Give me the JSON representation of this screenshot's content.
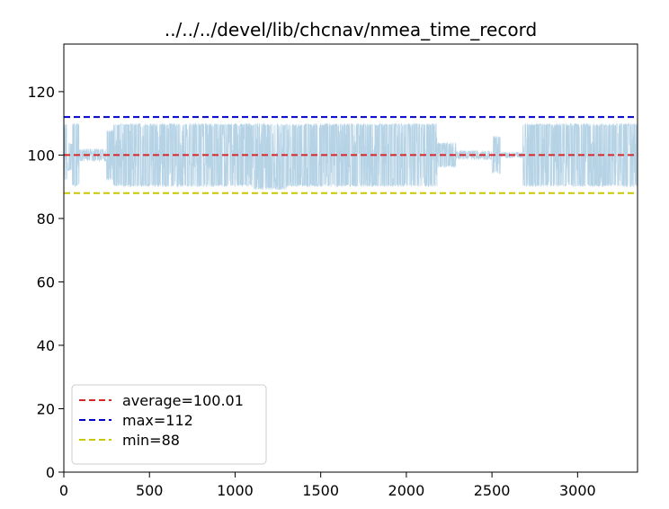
{
  "chart_data": {
    "type": "line",
    "title": "../../../devel/lib/chcnav/nmea_time_record",
    "xlabel": "",
    "ylabel": "",
    "xlim": [
      0,
      3350
    ],
    "ylim": [
      0,
      135
    ],
    "xticks": [
      0,
      500,
      1000,
      1500,
      2000,
      2500,
      3000
    ],
    "yticks": [
      0,
      20,
      40,
      60,
      80,
      100,
      120
    ],
    "grid": false,
    "legend_position": "lower-left",
    "series": [
      {
        "kind": "signal",
        "color": "#a9cbe2",
        "n_points": 3350,
        "center": 100,
        "segments": [
          {
            "x": [
              0,
              20
            ],
            "low": 92,
            "high": 110
          },
          {
            "x": [
              20,
              50
            ],
            "low": 95,
            "high": 104
          },
          {
            "x": [
              50,
              90
            ],
            "low": 90,
            "high": 110
          },
          {
            "x": [
              90,
              250
            ],
            "low": 98,
            "high": 102
          },
          {
            "x": [
              250,
              290
            ],
            "low": 92,
            "high": 108
          },
          {
            "x": [
              290,
              1100
            ],
            "low": 90,
            "high": 110
          },
          {
            "x": [
              1100,
              1300
            ],
            "low": 89,
            "high": 110
          },
          {
            "x": [
              1300,
              2180
            ],
            "low": 90,
            "high": 110
          },
          {
            "x": [
              2180,
              2290
            ],
            "low": 96,
            "high": 104
          },
          {
            "x": [
              2290,
              2500
            ],
            "low": 98.5,
            "high": 101.5
          },
          {
            "x": [
              2500,
              2550
            ],
            "low": 94,
            "high": 106
          },
          {
            "x": [
              2550,
              2680
            ],
            "low": 99,
            "high": 101
          },
          {
            "x": [
              2680,
              3350
            ],
            "low": 90,
            "high": 110
          }
        ]
      },
      {
        "name": "average=100.01",
        "kind": "hline",
        "value": 100.01,
        "color": "#d62728",
        "dash": "dashed"
      },
      {
        "name": "max=112",
        "kind": "hline",
        "value": 112,
        "color": "#0000cc",
        "dash": "dashed"
      },
      {
        "name": "min=88",
        "kind": "hline",
        "value": 88,
        "color": "#c8c800",
        "dash": "dashed"
      }
    ]
  }
}
